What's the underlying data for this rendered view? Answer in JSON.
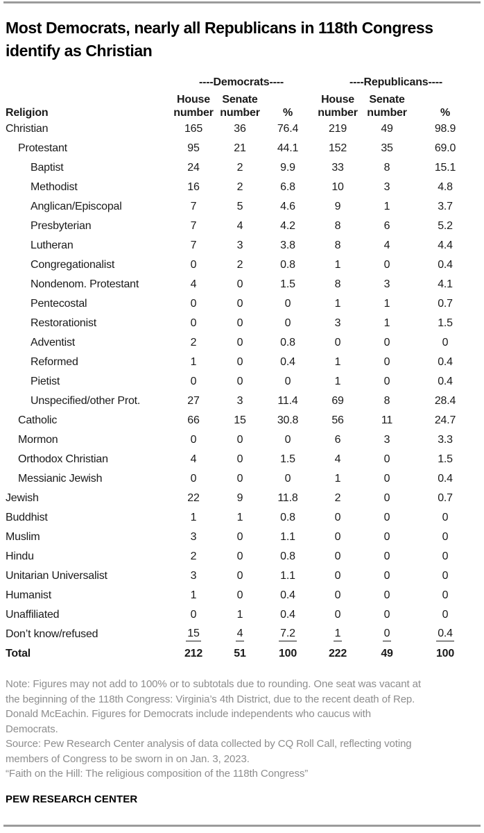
{
  "title": "Most Democrats, nearly all Republicans in 118th Congress identify as Christian",
  "colors": {
    "text_black": "#1a1a1a",
    "note_gray": "#8d8d8d",
    "rule_gray": "#9b9b9b"
  },
  "chart_data": {
    "type": "table",
    "title": "Most Democrats, nearly all Republicans in 118th Congress identify as Christian",
    "religion_header": "Religion",
    "group_headers": {
      "democrats": "----Democrats----",
      "republicans": "----Republicans----"
    },
    "sub_headers": [
      "House\nnumber",
      "Senate\nnumber",
      "%",
      "House\nnumber",
      "Senate\nnumber",
      "%"
    ],
    "columns": [
      "Religion",
      "Democrats House number",
      "Democrats Senate number",
      "Democrats %",
      "Republicans House number",
      "Republicans Senate number",
      "Republicans %"
    ],
    "rows": [
      {
        "label": "Christian",
        "indent": 0,
        "values": [
          "165",
          "36",
          "76.4",
          "219",
          "49",
          "98.9"
        ]
      },
      {
        "label": "Protestant",
        "indent": 1,
        "values": [
          "95",
          "21",
          "44.1",
          "152",
          "35",
          "69.0"
        ]
      },
      {
        "label": "Baptist",
        "indent": 2,
        "values": [
          "24",
          "2",
          "9.9",
          "33",
          "8",
          "15.1"
        ]
      },
      {
        "label": "Methodist",
        "indent": 2,
        "values": [
          "16",
          "2",
          "6.8",
          "10",
          "3",
          "4.8"
        ]
      },
      {
        "label": "Anglican/Episcopal",
        "indent": 2,
        "values": [
          "7",
          "5",
          "4.6",
          "9",
          "1",
          "3.7"
        ]
      },
      {
        "label": "Presbyterian",
        "indent": 2,
        "values": [
          "7",
          "4",
          "4.2",
          "8",
          "6",
          "5.2"
        ]
      },
      {
        "label": "Lutheran",
        "indent": 2,
        "values": [
          "7",
          "3",
          "3.8",
          "8",
          "4",
          "4.4"
        ]
      },
      {
        "label": "Congregationalist",
        "indent": 2,
        "values": [
          "0",
          "2",
          "0.8",
          "1",
          "0",
          "0.4"
        ]
      },
      {
        "label": "Nondenom. Protestant",
        "indent": 2,
        "values": [
          "4",
          "0",
          "1.5",
          "8",
          "3",
          "4.1"
        ]
      },
      {
        "label": "Pentecostal",
        "indent": 2,
        "values": [
          "0",
          "0",
          "0",
          "1",
          "1",
          "0.7"
        ]
      },
      {
        "label": "Restorationist",
        "indent": 2,
        "values": [
          "0",
          "0",
          "0",
          "3",
          "1",
          "1.5"
        ]
      },
      {
        "label": "Adventist",
        "indent": 2,
        "values": [
          "2",
          "0",
          "0.8",
          "0",
          "0",
          "0"
        ]
      },
      {
        "label": "Reformed",
        "indent": 2,
        "values": [
          "1",
          "0",
          "0.4",
          "1",
          "0",
          "0.4"
        ]
      },
      {
        "label": "Pietist",
        "indent": 2,
        "values": [
          "0",
          "0",
          "0",
          "1",
          "0",
          "0.4"
        ]
      },
      {
        "label": "Unspecified/other Prot.",
        "indent": 2,
        "values": [
          "27",
          "3",
          "11.4",
          "69",
          "8",
          "28.4"
        ]
      },
      {
        "label": "Catholic",
        "indent": 1,
        "values": [
          "66",
          "15",
          "30.8",
          "56",
          "11",
          "24.7"
        ]
      },
      {
        "label": "Mormon",
        "indent": 1,
        "values": [
          "0",
          "0",
          "0",
          "6",
          "3",
          "3.3"
        ]
      },
      {
        "label": "Orthodox Christian",
        "indent": 1,
        "values": [
          "4",
          "0",
          "1.5",
          "4",
          "0",
          "1.5"
        ]
      },
      {
        "label": "Messianic Jewish",
        "indent": 1,
        "values": [
          "0",
          "0",
          "0",
          "1",
          "0",
          "0.4"
        ]
      },
      {
        "label": "Jewish",
        "indent": 0,
        "values": [
          "22",
          "9",
          "11.8",
          "2",
          "0",
          "0.7"
        ]
      },
      {
        "label": "Buddhist",
        "indent": 0,
        "values": [
          "1",
          "1",
          "0.8",
          "0",
          "0",
          "0"
        ]
      },
      {
        "label": "Muslim",
        "indent": 0,
        "values": [
          "3",
          "0",
          "1.1",
          "0",
          "0",
          "0"
        ]
      },
      {
        "label": "Hindu",
        "indent": 0,
        "values": [
          "2",
          "0",
          "0.8",
          "0",
          "0",
          "0"
        ]
      },
      {
        "label": "Unitarian Universalist",
        "indent": 0,
        "values": [
          "3",
          "0",
          "1.1",
          "0",
          "0",
          "0"
        ]
      },
      {
        "label": "Humanist",
        "indent": 0,
        "values": [
          "1",
          "0",
          "0.4",
          "0",
          "0",
          "0"
        ]
      },
      {
        "label": "Unaffiliated",
        "indent": 0,
        "values": [
          "0",
          "1",
          "0.4",
          "0",
          "0",
          "0"
        ]
      },
      {
        "label": "Don’t know/refused",
        "indent": 0,
        "underline_values": true,
        "values": [
          "15",
          "4",
          "7.2",
          "1",
          "0",
          "0.4"
        ]
      },
      {
        "label": "Total",
        "indent": 0,
        "bold": true,
        "values": [
          "212",
          "51",
          "100",
          "222",
          "49",
          "100"
        ]
      }
    ]
  },
  "notes": {
    "note_lines": [
      "Note: Figures may not add to 100% or to subtotals due to rounding. One seat was vacant at",
      "the beginning of the 118th Congress: Virginia’s 4th District, due to the recent death of Rep.",
      "Donald McEachin. Figures for Democrats include independents who caucus with",
      "Democrats."
    ],
    "source_lines": [
      "Source: Pew Research Center analysis of data collected by CQ Roll Call, reflecting voting",
      "members of Congress to be sworn in on Jan. 3, 2023."
    ],
    "citation": "“Faith on the Hill: The religious composition of the 118th Congress”"
  },
  "footer": {
    "brand": "PEW RESEARCH CENTER"
  }
}
